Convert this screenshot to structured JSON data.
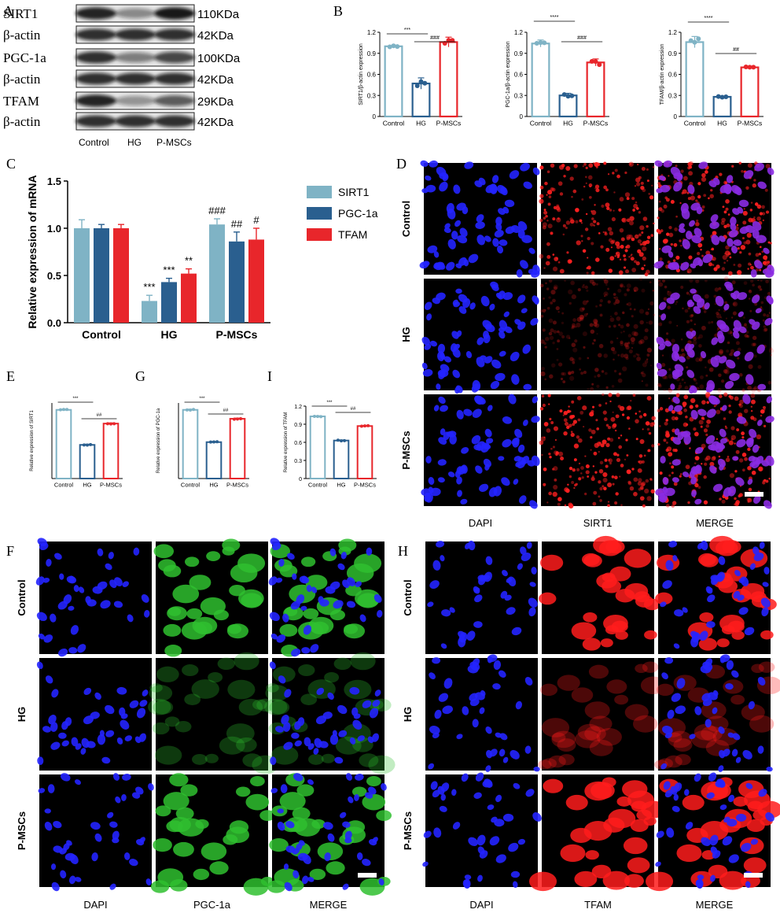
{
  "panel_letters": {
    "A": "A",
    "B": "B",
    "C": "C",
    "D": "D",
    "E": "E",
    "F": "F",
    "G": "G",
    "H": "H",
    "I": "I"
  },
  "colors": {
    "sirt1": "#7fb3c5",
    "pgc1a": "#2a5f8f",
    "tfam": "#e8262b"
  },
  "western_blot": {
    "rows": [
      {
        "label": "SIRT1",
        "size": "110KDa"
      },
      {
        "label": "β-actin",
        "size": "42KDa"
      },
      {
        "label": "PGC-1a",
        "size": "100KDa"
      },
      {
        "label": "β-actin",
        "size": "42KDa"
      },
      {
        "label": "TFAM",
        "size": "29KDa"
      },
      {
        "label": "β-actin",
        "size": "42KDa"
      }
    ],
    "lane_labels": [
      "Control",
      "HG",
      "P-MSCs"
    ]
  },
  "micrographs": {
    "D": {
      "columns": [
        "DAPI",
        "SIRT1",
        "MERGE"
      ],
      "rows": [
        "Control",
        "HG",
        "P-MSCs"
      ]
    },
    "F": {
      "columns": [
        "DAPI",
        "PGC-1a",
        "MERGE"
      ],
      "rows": [
        "Control",
        "HG",
        "P-MSCs"
      ]
    },
    "H": {
      "columns": [
        "DAPI",
        "TFAM",
        "MERGE"
      ],
      "rows": [
        "Control",
        "HG",
        "P-MSCs"
      ]
    }
  },
  "chart_data": [
    {
      "id": "B1",
      "type": "bar",
      "categories": [
        "Control",
        "HG",
        "P-MSCs"
      ],
      "values": [
        1.0,
        0.47,
        1.06
      ],
      "errors": [
        0.01,
        0.08,
        0.07
      ],
      "ylabel": "SIRT1/β-actin expression",
      "ylim": [
        0,
        1.2
      ],
      "yticks": [
        "0",
        "0.3",
        "0.6",
        "0.9",
        "1.2"
      ],
      "sig": [
        {
          "label": "***",
          "from": 0,
          "to": 1
        },
        {
          "label": "###",
          "from": 1,
          "to": 2
        }
      ]
    },
    {
      "id": "B2",
      "type": "bar",
      "categories": [
        "Control",
        "HG",
        "P-MSCs"
      ],
      "values": [
        1.04,
        0.3,
        0.77
      ],
      "errors": [
        0.05,
        0.03,
        0.05
      ],
      "ylabel": "PGC-1a/β-actin expression",
      "ylim": [
        0,
        1.2
      ],
      "yticks": [
        "0",
        "0.3",
        "0.6",
        "0.9",
        "1.2"
      ],
      "sig": [
        {
          "label": "****",
          "from": 0,
          "to": 1
        },
        {
          "label": "###",
          "from": 1,
          "to": 2
        }
      ]
    },
    {
      "id": "B3",
      "type": "bar",
      "categories": [
        "Control",
        "HG",
        "P-MSCs"
      ],
      "values": [
        1.06,
        0.28,
        0.7
      ],
      "errors": [
        0.08,
        0.01,
        0.01
      ],
      "ylabel": "TFAM/β-actin expression",
      "ylim": [
        0,
        1.2
      ],
      "yticks": [
        "0",
        "0.3",
        "0.6",
        "0.9",
        "1.2"
      ],
      "sig": [
        {
          "label": "****",
          "from": 0,
          "to": 1
        },
        {
          "label": "##",
          "from": 1,
          "to": 2
        }
      ]
    },
    {
      "id": "C",
      "type": "bar",
      "categories": [
        "Control",
        "HG",
        "P-MSCs"
      ],
      "ylabel": "Relative expression of mRNA",
      "ylim": [
        0,
        1.5
      ],
      "yticks": [
        "0.0",
        "0.5",
        "1.0",
        "1.5"
      ],
      "legend": "right",
      "series": [
        {
          "name": "SIRT1",
          "values": [
            1.0,
            0.23,
            1.04
          ],
          "errors": [
            0.09,
            0.06,
            0.06
          ],
          "marks": [
            "",
            "***",
            "###"
          ]
        },
        {
          "name": "PGC-1a",
          "values": [
            1.0,
            0.43,
            0.86
          ],
          "errors": [
            0.04,
            0.04,
            0.1
          ],
          "marks": [
            "",
            "***",
            "##"
          ]
        },
        {
          "name": "TFAM",
          "values": [
            1.0,
            0.52,
            0.88
          ],
          "errors": [
            0.04,
            0.05,
            0.12
          ],
          "marks": [
            "",
            "**",
            "#"
          ]
        }
      ]
    },
    {
      "id": "E",
      "type": "bar",
      "categories": [
        "Control",
        "HG",
        "P-MSCs"
      ],
      "values": [
        1.0,
        0.49,
        0.8
      ],
      "errors": [
        0.01,
        0.01,
        0.01
      ],
      "ylabel": "Relative expression of SIRT1",
      "ylim": [
        0,
        1.1
      ],
      "yticks": [],
      "sig": [
        {
          "label": "***",
          "from": 0,
          "to": 1
        },
        {
          "label": "##",
          "from": 1,
          "to": 2
        }
      ]
    },
    {
      "id": "G",
      "type": "bar",
      "categories": [
        "Control",
        "HG",
        "P-MSCs"
      ],
      "values": [
        1.0,
        0.53,
        0.87
      ],
      "errors": [
        0.01,
        0.01,
        0.01
      ],
      "ylabel": "Relative expression of PGC-1a",
      "ylim": [
        0,
        1.1
      ],
      "yticks": [],
      "sig": [
        {
          "label": "***",
          "from": 0,
          "to": 1
        },
        {
          "label": "##",
          "from": 1,
          "to": 2
        }
      ]
    },
    {
      "id": "I",
      "type": "bar",
      "categories": [
        "Control",
        "HG",
        "P-MSCs"
      ],
      "values": [
        1.03,
        0.63,
        0.87
      ],
      "errors": [
        0.01,
        0.01,
        0.01
      ],
      "ylabel": "Relative expression of TFAM",
      "ylim": [
        0,
        1.2
      ],
      "yticks": [
        "0",
        "0.3",
        "0.6",
        "0.9",
        "1.2"
      ],
      "sig": [
        {
          "label": "***",
          "from": 0,
          "to": 1
        },
        {
          "label": "##",
          "from": 1,
          "to": 2
        }
      ]
    }
  ]
}
